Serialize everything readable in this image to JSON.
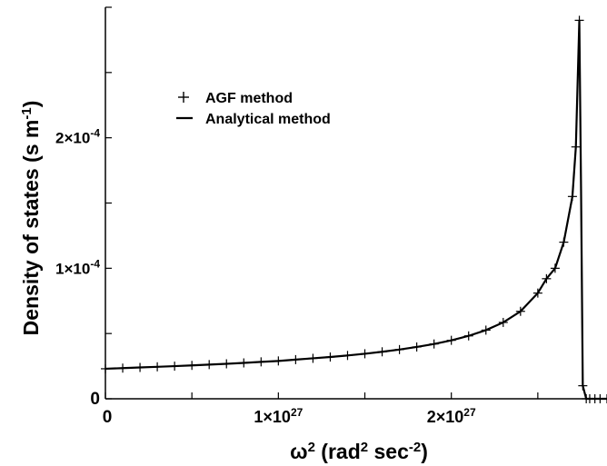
{
  "chart_data": {
    "type": "line",
    "title": "",
    "xlabel": {
      "base": "ω",
      "sup": "2",
      "rest_open": "  (rad",
      "rest_sup": "2",
      "rest_mid": "  sec",
      "rest_sup2": "-2",
      "rest_close": ")"
    },
    "ylabel": {
      "main": "Density of states (s m",
      "sup": "-1",
      "close": ")"
    },
    "xlim": [
      0,
      2.9e+27
    ],
    "ylim": [
      0,
      0.0003
    ],
    "x_ticks": [
      {
        "value": 0,
        "label": "0"
      },
      {
        "value": 1e+27,
        "mant": "1×10",
        "exp": "27"
      },
      {
        "value": 2e+27,
        "mant": "2×10",
        "exp": "27"
      }
    ],
    "y_ticks": [
      {
        "value": 0,
        "label": "0"
      },
      {
        "value": 0.0001,
        "mant": "1×10",
        "exp": "-4"
      },
      {
        "value": 0.0002,
        "mant": "2×10",
        "exp": "-4"
      }
    ],
    "legend_position": "upper-left",
    "series": [
      {
        "name": "AGF method",
        "marker": "+",
        "x": [
          0,
          1e+26,
          2e+26,
          3e+26,
          4e+26,
          5e+26,
          6e+26,
          7e+26,
          8e+26,
          9e+26,
          1e+27,
          1.1e+27,
          1.2e+27,
          1.3e+27,
          1.4e+27,
          1.5e+27,
          1.6e+27,
          1.7e+27,
          1.8e+27,
          1.9e+27,
          2e+27,
          2.1e+27,
          2.2e+27,
          2.3e+27,
          2.4e+27,
          2.5e+27,
          2.55e+27,
          2.6e+27,
          2.65e+27,
          2.7e+27,
          2.72e+27,
          2.74e+27,
          2.76e+27,
          2.78e+27,
          2.8e+27,
          2.83e+27,
          2.86e+27,
          2.9e+27
        ],
        "y": [
          2.3e-05,
          2.35e-05,
          2.4e-05,
          2.45e-05,
          2.5e-05,
          2.56e-05,
          2.62e-05,
          2.68e-05,
          2.75e-05,
          2.83e-05,
          2.9e-05,
          3e-05,
          3.1e-05,
          3.2e-05,
          3.32e-05,
          3.45e-05,
          3.6e-05,
          3.77e-05,
          3.97e-05,
          4.2e-05,
          4.48e-05,
          4.82e-05,
          5.26e-05,
          5.85e-05,
          6.7e-05,
          8.1e-05,
          9.2e-05,
          0.0001,
          0.00012,
          0.000155,
          0.000193,
          0.00029,
          1e-05,
          0,
          0,
          0,
          0,
          0
        ]
      },
      {
        "name": "Analytical method",
        "marker": "line",
        "x": [
          0,
          1e+26,
          2e+26,
          3e+26,
          4e+26,
          5e+26,
          6e+26,
          7e+26,
          8e+26,
          9e+26,
          1e+27,
          1.1e+27,
          1.2e+27,
          1.3e+27,
          1.4e+27,
          1.5e+27,
          1.6e+27,
          1.7e+27,
          1.8e+27,
          1.9e+27,
          2e+27,
          2.1e+27,
          2.2e+27,
          2.3e+27,
          2.4e+27,
          2.5e+27,
          2.55e+27,
          2.6e+27,
          2.65e+27,
          2.7e+27,
          2.72e+27,
          2.74e+27,
          2.75e+27,
          2.76e+27,
          2.78e+27,
          2.8e+27,
          2.9e+27
        ],
        "y": [
          2.3e-05,
          2.35e-05,
          2.4e-05,
          2.45e-05,
          2.5e-05,
          2.56e-05,
          2.62e-05,
          2.68e-05,
          2.75e-05,
          2.83e-05,
          2.9e-05,
          3e-05,
          3.1e-05,
          3.2e-05,
          3.32e-05,
          3.45e-05,
          3.6e-05,
          3.77e-05,
          3.97e-05,
          4.2e-05,
          4.48e-05,
          4.82e-05,
          5.26e-05,
          5.85e-05,
          6.7e-05,
          8.1e-05,
          9.2e-05,
          0.0001,
          0.00012,
          0.000155,
          0.000193,
          0.00029,
          0.00016,
          1e-05,
          0,
          0,
          0
        ]
      }
    ]
  }
}
